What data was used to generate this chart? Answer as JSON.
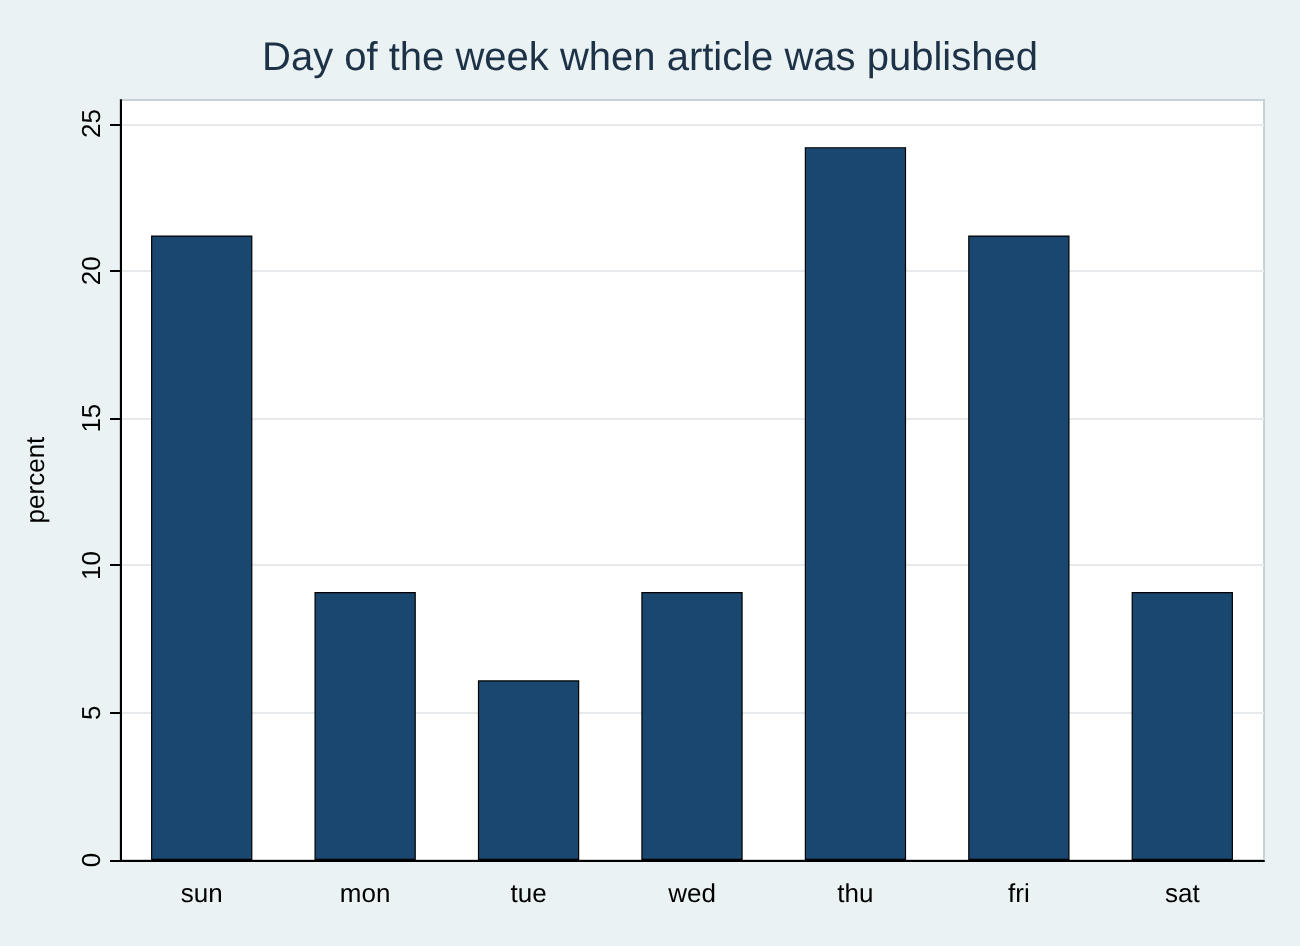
{
  "chart_data": {
    "type": "bar",
    "title": "Day of the week when article was published",
    "ylabel": "percent",
    "categories": [
      "sun",
      "mon",
      "tue",
      "wed",
      "thu",
      "fri",
      "sat"
    ],
    "values": [
      21.2,
      9.1,
      6.1,
      9.1,
      24.2,
      21.2,
      9.1
    ],
    "color": "#1a476f",
    "ylim": [
      0,
      25.8
    ],
    "yticks": [
      0,
      5,
      10,
      15,
      20,
      25
    ],
    "grid": "y"
  }
}
